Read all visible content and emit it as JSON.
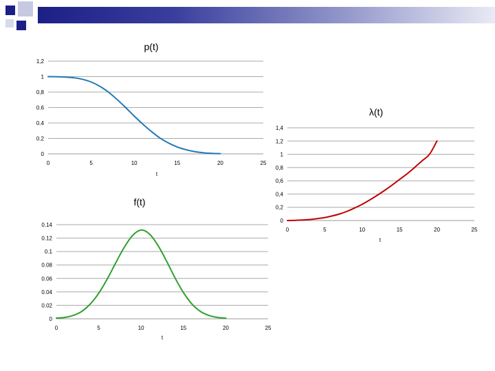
{
  "chart_data": [
    {
      "id": "p",
      "type": "line",
      "title": "p(t)",
      "xlabel": "t",
      "ylabel": "",
      "color": "#1f77b4",
      "xlim": [
        0,
        25
      ],
      "ylim": [
        0,
        1.2
      ],
      "xticks": [
        0,
        5,
        10,
        15,
        20,
        25
      ],
      "xtick_labels": [
        "0",
        "5",
        "10",
        "15",
        "20",
        "25"
      ],
      "yticks": [
        0,
        0.2,
        0.4,
        0.6,
        0.8,
        1,
        1.2
      ],
      "ytick_labels": [
        "0",
        "0.2",
        "0.4",
        "0.6",
        "0,8",
        "1",
        "1,2"
      ],
      "x": [
        0,
        1,
        2,
        3,
        4,
        5,
        6,
        7,
        8,
        9,
        10,
        11,
        12,
        13,
        14,
        15,
        16,
        17,
        18,
        19,
        20
      ],
      "y": [
        1.0,
        0.998,
        0.994,
        0.985,
        0.965,
        0.93,
        0.875,
        0.8,
        0.705,
        0.6,
        0.49,
        0.385,
        0.29,
        0.205,
        0.14,
        0.09,
        0.055,
        0.03,
        0.015,
        0.007,
        0.003
      ]
    },
    {
      "id": "lambda",
      "type": "line",
      "title": "λ(t)",
      "xlabel": "t",
      "ylabel": "",
      "color": "#c00000",
      "xlim": [
        0,
        25
      ],
      "ylim": [
        0,
        1.4
      ],
      "xticks": [
        0,
        5,
        10,
        15,
        20,
        25
      ],
      "xtick_labels": [
        "0",
        "5",
        "10",
        "15",
        "20",
        "25"
      ],
      "yticks": [
        0,
        0.2,
        0.4,
        0.6,
        0.8,
        1,
        1.2,
        1.4
      ],
      "ytick_labels": [
        "0",
        "0,2",
        "0,4",
        "0,6",
        "0,8",
        "1",
        "1,2",
        "1,4"
      ],
      "x": [
        0,
        1,
        2,
        3,
        4,
        5,
        6,
        7,
        8,
        9,
        10,
        11,
        12,
        13,
        14,
        15,
        16,
        17,
        18,
        19,
        20
      ],
      "y": [
        0.0,
        0.003,
        0.008,
        0.015,
        0.028,
        0.045,
        0.07,
        0.1,
        0.14,
        0.19,
        0.245,
        0.31,
        0.38,
        0.455,
        0.535,
        0.62,
        0.705,
        0.8,
        0.9,
        1.0,
        1.2
      ]
    },
    {
      "id": "f",
      "type": "line",
      "title": "f(t)",
      "xlabel": "t",
      "ylabel": "",
      "color": "#2ca02c",
      "xlim": [
        0,
        25
      ],
      "ylim": [
        0,
        0.14
      ],
      "xticks": [
        0,
        5,
        10,
        15,
        20,
        25
      ],
      "xtick_labels": [
        "0",
        "5",
        "10",
        "15",
        "20",
        "25"
      ],
      "yticks": [
        0,
        0.02,
        0.04,
        0.06,
        0.08,
        0.1,
        0.12,
        0.14
      ],
      "ytick_labels": [
        "0",
        "0.02",
        "0.04",
        "0.06",
        "0.08",
        "0.1",
        "0.12",
        "0.14"
      ],
      "x": [
        0,
        1,
        2,
        3,
        4,
        5,
        6,
        7,
        8,
        9,
        10,
        11,
        12,
        13,
        14,
        15,
        16,
        17,
        18,
        19,
        20
      ],
      "y": [
        0.001,
        0.002,
        0.005,
        0.011,
        0.022,
        0.038,
        0.059,
        0.083,
        0.106,
        0.124,
        0.132,
        0.126,
        0.109,
        0.086,
        0.061,
        0.039,
        0.022,
        0.011,
        0.005,
        0.002,
        0.001
      ]
    }
  ]
}
